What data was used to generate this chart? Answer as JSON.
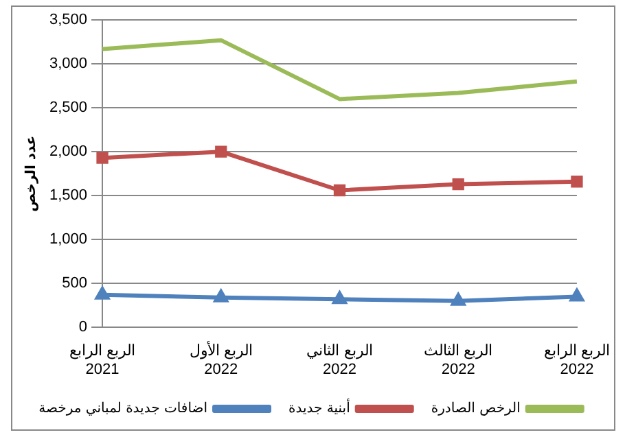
{
  "chart_data": {
    "type": "line",
    "ylabel": "عدد الرخص",
    "categories": [
      "الربع الرابع\n2021",
      "الربع الأول\n2022",
      "الربع الثاني\n2022",
      "الربع الثالث\n2022",
      "الربع الرابع\n2022"
    ],
    "series": [
      {
        "name": "الرخص الصادرة",
        "color": "#9bbb59",
        "marker": "none",
        "values": [
          3170,
          3270,
          2600,
          2670,
          2800
        ]
      },
      {
        "name": "أبنية جديدة",
        "color": "#c0504d",
        "marker": "square",
        "values": [
          1930,
          2000,
          1560,
          1630,
          1660
        ]
      },
      {
        "name": "اضافات جديدة لمباني مرخصة",
        "color": "#4f81bd",
        "marker": "triangle",
        "values": [
          370,
          340,
          320,
          300,
          350
        ]
      }
    ],
    "ylim": [
      0,
      3500
    ],
    "yticks": [
      0,
      500,
      {
        "value": 1000,
        "label": "1,000"
      },
      {
        "value": 1500,
        "label": "1,500"
      },
      {
        "value": 2000,
        "label": "2,000"
      },
      {
        "value": 2500,
        "label": "2,500"
      },
      {
        "value": 3000,
        "label": "3,000"
      },
      {
        "value": 3500,
        "label": "3,500"
      }
    ],
    "grid": "y",
    "legend": "bottom"
  }
}
